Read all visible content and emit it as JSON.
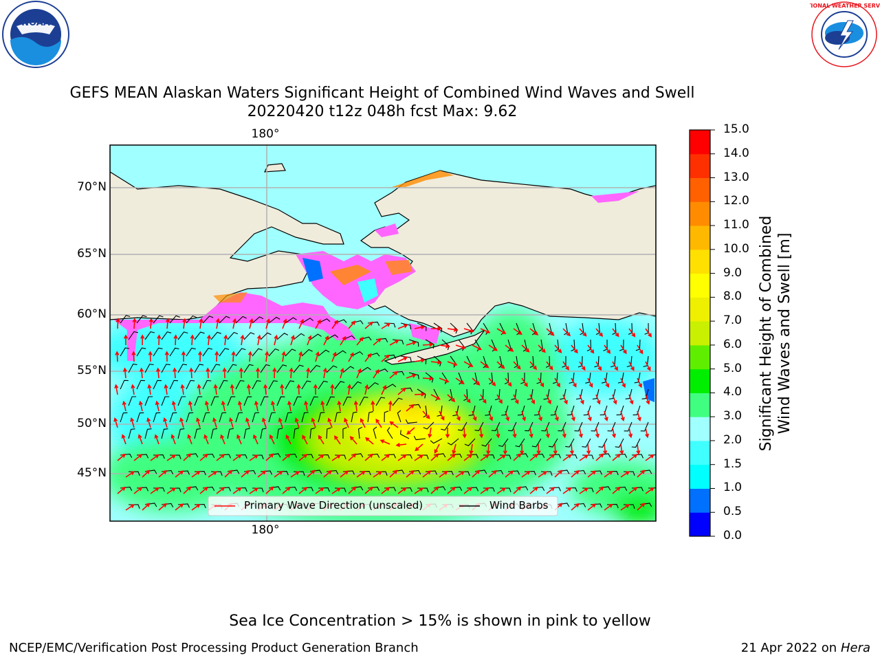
{
  "header": {
    "title_line1": "GEFS MEAN Alaskan Waters Significant Height of Combined Wind Waves and Swell",
    "title_line2": "20220420 t12z 048h fcst   Max: 9.62"
  },
  "logos": {
    "left": {
      "icon": "noaa-logo",
      "text": "NOAA"
    },
    "right": {
      "icon": "nws-logo",
      "text": "NATIONAL WEATHER SERVICE"
    }
  },
  "map": {
    "lon_label_top": "180°",
    "lon_label_bottom": "180°",
    "lat_labels": [
      "70°N",
      "65°N",
      "60°N",
      "55°N",
      "50°N",
      "45°N"
    ],
    "colors": {
      "land": "#efecdc",
      "ice": "#ff66ff",
      "coast": "#000000",
      "grid": "#b0b0b0",
      "arrow": "#ff0000",
      "barb": "#000000"
    }
  },
  "legend": {
    "wave_label": "Primary Wave Direction (unscaled)",
    "barb_label": "Wind Barbs"
  },
  "colorbar": {
    "label_line1": "Significant Height of Combined",
    "label_line2": "Wind Waves and Swell [m]",
    "ticks": [
      "15.0",
      "14.0",
      "13.0",
      "12.0",
      "11.0",
      "10.0",
      "9.0",
      "8.0",
      "7.0",
      "6.0",
      "5.0",
      "4.0",
      "3.0",
      "2.0",
      "1.5",
      "1.0",
      "0.5",
      "0.0"
    ],
    "levels": [
      0,
      0.5,
      1,
      1.5,
      2,
      3,
      4,
      5,
      6,
      7,
      8,
      9,
      10,
      11,
      12,
      13,
      14,
      15
    ],
    "colors": [
      "#0000ff",
      "#0070ff",
      "#00ffff",
      "#40ffff",
      "#a0ffff",
      "#40ff80",
      "#00ee00",
      "#60ee00",
      "#c8f000",
      "#eef000",
      "#ffff00",
      "#ffe000",
      "#ffb800",
      "#ff8c00",
      "#ff6000",
      "#ff3000",
      "#ff0000"
    ]
  },
  "footer": {
    "note": "Sea Ice Concentration > 15% is shown in pink to yellow",
    "left": "NCEP/EMC/Verification Post Processing Product Generation Branch",
    "date": "21 Apr 2022 on ",
    "host": "Hera"
  }
}
